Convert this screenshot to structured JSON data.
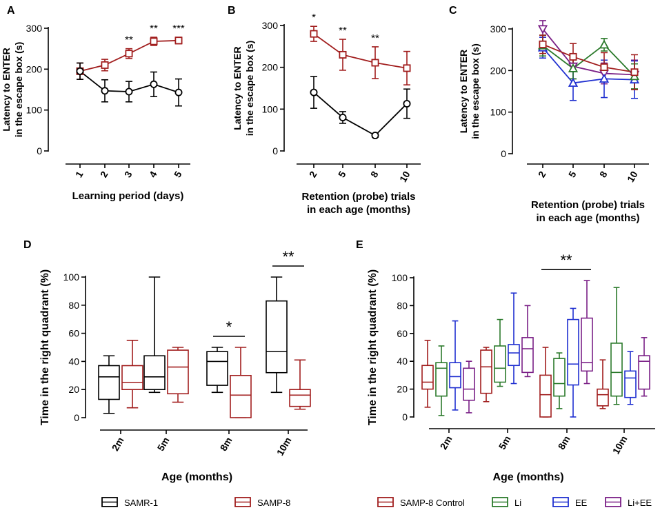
{
  "colors": {
    "samr1": "#000000",
    "samp8": "#a11d1d",
    "li": "#2b7a2b",
    "ee": "#1f2fd0",
    "liee": "#7a1f86",
    "axis": "#000000"
  },
  "chart_data": [
    {
      "panel": "A",
      "type": "line",
      "title": "",
      "xlabel": "Learning period (days)",
      "ylabel": [
        "Latency to ENTER",
        "in the escape box  (s)"
      ],
      "categories": [
        "1",
        "2",
        "3",
        "4",
        "5"
      ],
      "ylim": [
        0,
        300
      ],
      "yticks": [
        "0",
        "100",
        "200",
        "300"
      ],
      "series": [
        {
          "name": "SAMR-1",
          "color_key": "samr1",
          "marker": "circle",
          "values": [
            195,
            147,
            145,
            163,
            143
          ],
          "err": [
            20,
            27,
            25,
            30,
            33
          ]
        },
        {
          "name": "SAMP-8",
          "color_key": "samp8",
          "marker": "square",
          "values": [
            195,
            210,
            238,
            268,
            270
          ],
          "err": [
            20,
            14,
            12,
            10,
            8
          ]
        }
      ],
      "annotations": [
        {
          "category": "3",
          "text": "**"
        },
        {
          "category": "4",
          "text": "**"
        },
        {
          "category": "5",
          "text": "***"
        }
      ]
    },
    {
      "panel": "B",
      "type": "line",
      "title": "",
      "xlabel": [
        "Retention (probe) trials",
        "in each age (months)"
      ],
      "ylabel": [
        "Latency to ENTER",
        "in the escape box  (s)"
      ],
      "categories": [
        "2",
        "5",
        "8",
        "10"
      ],
      "ylim": [
        0,
        300
      ],
      "yticks": [
        "0",
        "100",
        "200",
        "300"
      ],
      "series": [
        {
          "name": "SAMR-1",
          "color_key": "samr1",
          "marker": "circle",
          "values": [
            140,
            80,
            37,
            113
          ],
          "err": [
            38,
            14,
            4,
            35
          ]
        },
        {
          "name": "SAMP-8",
          "color_key": "samp8",
          "marker": "square",
          "values": [
            280,
            230,
            211,
            198
          ],
          "err": [
            18,
            37,
            38,
            40
          ]
        }
      ],
      "annotations": [
        {
          "category": "2",
          "text": "*"
        },
        {
          "category": "5",
          "text": "**"
        },
        {
          "category": "8",
          "text": "**"
        }
      ]
    },
    {
      "panel": "C",
      "type": "line",
      "title": "",
      "xlabel": [
        "Retention (probe) trials",
        "in each age (months)"
      ],
      "ylabel": [
        "Latency to ENTER",
        "in the escape box  (s)"
      ],
      "categories": [
        "2",
        "5",
        "8",
        "10"
      ],
      "ylim": [
        0,
        300
      ],
      "yticks": [
        "0",
        "100",
        "200",
        "300"
      ],
      "series": [
        {
          "name": "SAMP-8 Control",
          "color_key": "samp8",
          "marker": "square",
          "values": [
            263,
            233,
            208,
            196
          ],
          "err": [
            22,
            32,
            35,
            42
          ]
        },
        {
          "name": "Li",
          "color_key": "li",
          "marker": "triangle",
          "values": [
            260,
            205,
            262,
            186
          ],
          "err": [
            25,
            25,
            15,
            30
          ]
        },
        {
          "name": "EE",
          "color_key": "ee",
          "marker": "triangle",
          "values": [
            255,
            170,
            180,
            178
          ],
          "err": [
            25,
            42,
            45,
            45
          ]
        },
        {
          "name": "Li+EE",
          "color_key": "liee",
          "marker": "invtriangle",
          "values": [
            300,
            210,
            193,
            190
          ],
          "err": [
            20,
            30,
            25,
            35
          ]
        }
      ],
      "annotations": []
    },
    {
      "panel": "D",
      "type": "box",
      "title": "",
      "xlabel": "Age (months)",
      "ylabel": "Time in the right quadrant (%)",
      "categories": [
        "2m",
        "5m",
        "8m",
        "10m"
      ],
      "ylim": [
        0,
        100
      ],
      "yticks": [
        "0",
        "20",
        "40",
        "60",
        "80",
        "100"
      ],
      "series": [
        {
          "name": "SAMR-1",
          "color_key": "samr1",
          "boxes": [
            {
              "min": 3,
              "q1": 13,
              "median": 29,
              "q3": 37,
              "max": 44
            },
            {
              "min": 18,
              "q1": 20,
              "median": 29,
              "q3": 44,
              "max": 100
            },
            {
              "min": 18,
              "q1": 23,
              "median": 40,
              "q3": 47,
              "max": 50
            },
            {
              "min": 18,
              "q1": 32,
              "median": 47,
              "q3": 83,
              "max": 100
            }
          ]
        },
        {
          "name": "SAMP-8",
          "color_key": "samp8",
          "boxes": [
            {
              "min": 7,
              "q1": 20,
              "median": 25,
              "q3": 37,
              "max": 55
            },
            {
              "min": 11,
              "q1": 17,
              "median": 36,
              "q3": 48,
              "max": 50
            },
            {
              "min": 0,
              "q1": 0,
              "median": 16,
              "q3": 30,
              "max": 50
            },
            {
              "min": 6,
              "q1": 8,
              "median": 16,
              "q3": 20,
              "max": 41
            }
          ]
        }
      ],
      "annotations": [
        {
          "category": "8m",
          "text": "*"
        },
        {
          "category": "10m",
          "text": "**"
        }
      ],
      "legend": [
        "SAMR-1",
        "SAMP-8"
      ]
    },
    {
      "panel": "E",
      "type": "box",
      "title": "",
      "xlabel": "Age (months)",
      "ylabel": "Time in the right quadrant (%)",
      "categories": [
        "2m",
        "5m",
        "8m",
        "10m"
      ],
      "ylim": [
        0,
        100
      ],
      "yticks": [
        "0",
        "20",
        "40",
        "60",
        "80",
        "100"
      ],
      "series": [
        {
          "name": "SAMP-8 Control",
          "color_key": "samp8",
          "boxes": [
            {
              "min": 7,
              "q1": 20,
              "median": 25,
              "q3": 37,
              "max": 55
            },
            {
              "min": 11,
              "q1": 17,
              "median": 36,
              "q3": 48,
              "max": 50
            },
            {
              "min": 0,
              "q1": 0,
              "median": 16,
              "q3": 30,
              "max": 50
            },
            {
              "min": 6,
              "q1": 8,
              "median": 16,
              "q3": 20,
              "max": 41
            }
          ]
        },
        {
          "name": "Li",
          "color_key": "li",
          "boxes": [
            {
              "min": 1,
              "q1": 15,
              "median": 35,
              "q3": 39,
              "max": 51
            },
            {
              "min": 22,
              "q1": 25,
              "median": 35,
              "q3": 51,
              "max": 70
            },
            {
              "min": 6,
              "q1": 15,
              "median": 24,
              "q3": 42,
              "max": 46
            },
            {
              "min": 9,
              "q1": 15,
              "median": 32,
              "q3": 53,
              "max": 93
            }
          ]
        },
        {
          "name": "EE",
          "color_key": "ee",
          "boxes": [
            {
              "min": 5,
              "q1": 21,
              "median": 29,
              "q3": 39,
              "max": 69
            },
            {
              "min": 24,
              "q1": 37,
              "median": 46,
              "q3": 52,
              "max": 89
            },
            {
              "min": 0,
              "q1": 23,
              "median": 38,
              "q3": 70,
              "max": 78
            },
            {
              "min": 9,
              "q1": 14,
              "median": 28,
              "q3": 33,
              "max": 47
            }
          ]
        },
        {
          "name": "Li+EE",
          "color_key": "liee",
          "boxes": [
            {
              "min": 3,
              "q1": 12,
              "median": 20,
              "q3": 35,
              "max": 40
            },
            {
              "min": 29,
              "q1": 32,
              "median": 49,
              "q3": 57,
              "max": 80
            },
            {
              "min": 24,
              "q1": 33,
              "median": 39,
              "q3": 71,
              "max": 98
            },
            {
              "min": 15,
              "q1": 20,
              "median": 40,
              "q3": 44,
              "max": 57
            }
          ]
        }
      ],
      "annotations": [
        {
          "category": "8m",
          "text": "**"
        }
      ],
      "legend": [
        "SAMP-8 Control",
        "Li",
        "EE",
        "Li+EE"
      ]
    }
  ]
}
